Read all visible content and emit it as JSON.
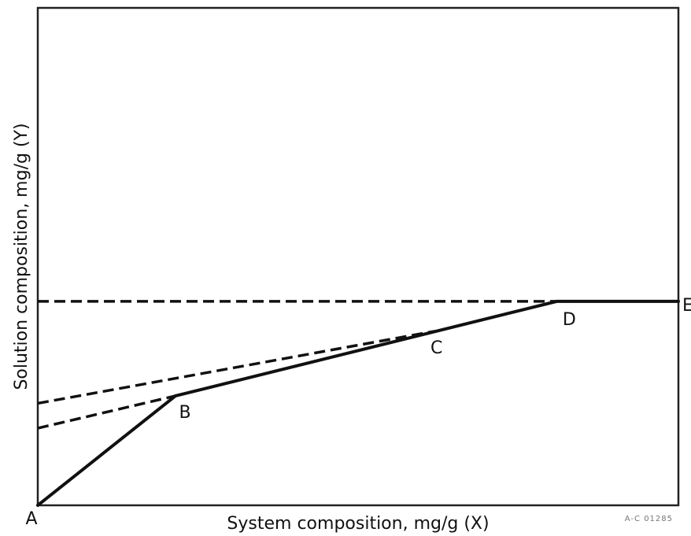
{
  "chart_data": {
    "type": "line",
    "title": "",
    "xlabel": "System composition, mg/g (X)",
    "ylabel": "Solution composition, mg/g (Y)",
    "xlim": [
      0,
      100
    ],
    "ylim": [
      0,
      100
    ],
    "grid": false,
    "credit": "A-C 01285",
    "points": [
      {
        "label": "A",
        "x": 0,
        "y": 0
      },
      {
        "label": "B",
        "x": 21.5,
        "y": 22
      },
      {
        "label": "C",
        "x": 62,
        "y": 35
      },
      {
        "label": "D",
        "x": 81,
        "y": 41
      },
      {
        "label": "E",
        "x": 100,
        "y": 41
      }
    ],
    "series": [
      {
        "style": "solid",
        "x": [
          0,
          21.5,
          81,
          100
        ],
        "y": [
          0,
          22,
          41,
          41
        ]
      },
      {
        "style": "dashed",
        "x": [
          0,
          21.5
        ],
        "y": [
          15.5,
          22
        ]
      },
      {
        "style": "dashed",
        "x": [
          0,
          62
        ],
        "y": [
          20.5,
          35
        ]
      },
      {
        "style": "dashed",
        "x": [
          0,
          81
        ],
        "y": [
          41,
          41
        ]
      }
    ]
  }
}
